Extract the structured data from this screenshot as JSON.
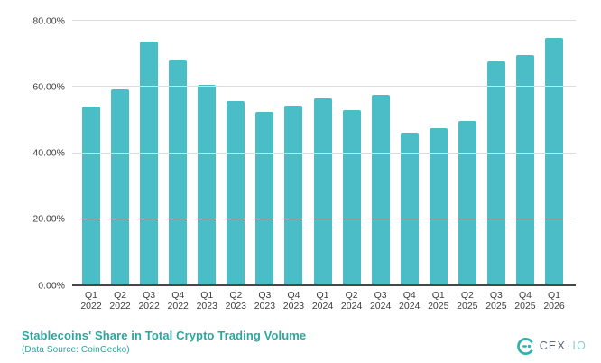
{
  "chart_data": {
    "type": "bar",
    "categories": [
      "Q1 2022",
      "Q2 2022",
      "Q3 2022",
      "Q4 2022",
      "Q1 2023",
      "Q2 2023",
      "Q3 2023",
      "Q4 2023",
      "Q1 2024",
      "Q2 2024",
      "Q3 2024",
      "Q4 2024",
      "Q1 2025",
      "Q2 2025",
      "Q3 2025",
      "Q4 2025",
      "Q1 2026"
    ],
    "values": [
      54.1,
      59.3,
      73.8,
      68.4,
      60.5,
      55.8,
      52.4,
      54.3,
      56.6,
      53.1,
      57.7,
      46.2,
      47.4,
      49.7,
      67.7,
      69.7,
      74.8
    ],
    "unit": "%",
    "ylim": [
      0,
      80
    ],
    "yticks": [
      {
        "value": 0,
        "label": "0.00%"
      },
      {
        "value": 20,
        "label": "20.00%"
      },
      {
        "value": 40,
        "label": "40.00%"
      },
      {
        "value": 60,
        "label": "60.00%"
      },
      {
        "value": 80,
        "label": "80.00%"
      }
    ],
    "grid": true,
    "legend": "none",
    "title": "Stablecoins' Share in Total Crypto Trading Volume",
    "xlabel": "",
    "ylabel": ""
  },
  "footer": {
    "title": "Stablecoins' Share in Total Crypto Trading Volume",
    "subtitle": "(Data Source: CoinGecko)"
  },
  "logo": {
    "brand": "CEX",
    "separator": "·",
    "suffix": "IO",
    "icon": "cexio-mark"
  },
  "colors": {
    "bar": "#4abdc7",
    "title_teal": "#2ba79f",
    "axis_text": "#3d3d3d",
    "gridline": "#dcdcdc",
    "axis_line": "#474747",
    "logo_gray": "#5c6770",
    "logo_teal_light": "#8bcfcc",
    "logo_icon_teal": "#2fb2ad"
  }
}
